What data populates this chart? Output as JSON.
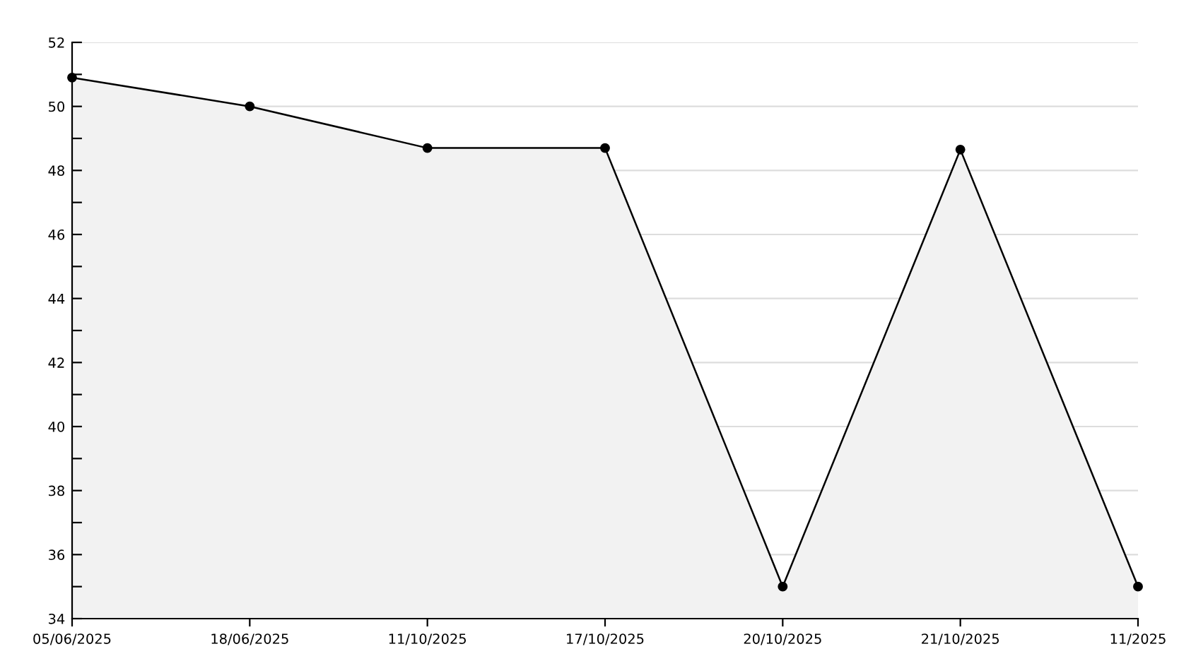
{
  "chart_data": {
    "type": "area",
    "categories": [
      "05/06/2025",
      "18/06/2025",
      "11/10/2025",
      "17/10/2025",
      "20/10/2025",
      "21/10/2025",
      "11/2025"
    ],
    "series": [
      {
        "color": "#000000",
        "values": [
          50.9,
          50.0,
          48.7,
          48.7,
          35.0,
          48.65,
          35.0
        ]
      }
    ],
    "ylim": [
      34,
      52
    ],
    "yticks": [
      34,
      {
        "value": 35,
        "label": null
      },
      36,
      {
        "value": 37,
        "label": null
      },
      38,
      {
        "value": 39,
        "label": null
      },
      40,
      {
        "value": 41,
        "label": null
      },
      42,
      {
        "value": 43,
        "label": null
      },
      44,
      {
        "value": 45,
        "label": null
      },
      46,
      {
        "value": 47,
        "label": null
      },
      48,
      {
        "value": 49,
        "label": null
      },
      50,
      {
        "value": 51,
        "label": null
      },
      52
    ],
    "grid": "y",
    "marker": "circle",
    "line_style": "solid",
    "legend": false
  }
}
